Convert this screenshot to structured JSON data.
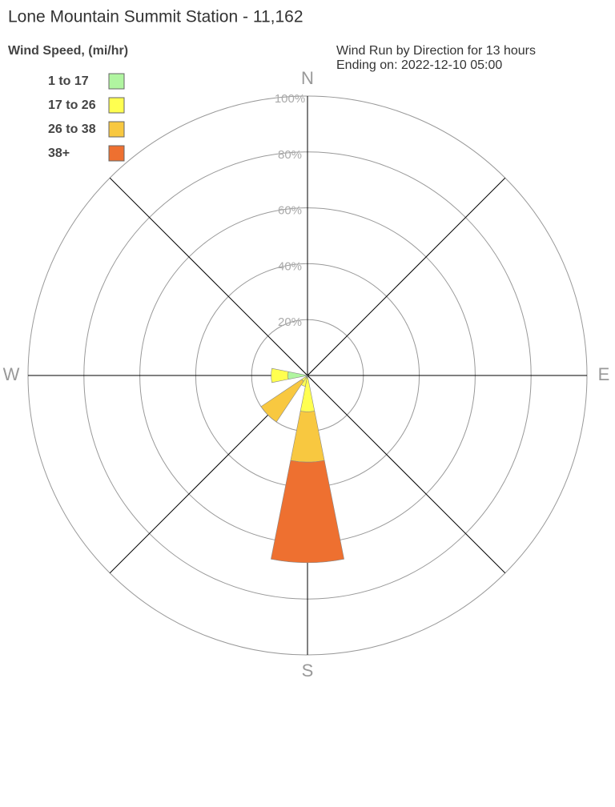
{
  "chart_data": {
    "type": "windrose",
    "title": "Lone Mountain Summit Station - 11,162",
    "legend_title": "Wind Speed, (mi/hr)",
    "subtitle": [
      "Wind Run by Direction for 13 hours",
      "Ending on: 2022-12-10 05:00"
    ],
    "compass": [
      "N",
      "E",
      "S",
      "W"
    ],
    "x": [
      0,
      22.5,
      45,
      67.5,
      90,
      112.5,
      135,
      157.5,
      180,
      202.5,
      225,
      247.5,
      270,
      292.5,
      315,
      337.5
    ],
    "series": [
      {
        "name": "1 to 17",
        "color": "#b0f5a0",
        "values": [
          0,
          0,
          0,
          0,
          0,
          0,
          0,
          0,
          0.5,
          1,
          0.5,
          0,
          7,
          0,
          0,
          0
        ]
      },
      {
        "name": "17 to 26",
        "color": "#ffff50",
        "values": [
          0,
          0,
          0,
          0,
          0,
          0,
          0,
          0,
          12.5,
          3,
          2,
          0,
          6,
          0,
          0,
          0
        ]
      },
      {
        "name": "26 to 38",
        "color": "#f8c840",
        "values": [
          0,
          0,
          0,
          0,
          0,
          0,
          0,
          0,
          18,
          0,
          17.5,
          0,
          0,
          0,
          0,
          0
        ]
      },
      {
        "name": "38+",
        "color": "#ee7030",
        "values": [
          0,
          0,
          0,
          0,
          0,
          0,
          0,
          0,
          36,
          0,
          0,
          0,
          0,
          0,
          0,
          0
        ]
      }
    ],
    "ylim": [
      0,
      100
    ],
    "yticks": [
      {
        "value": 20,
        "label": "20%"
      },
      {
        "value": 40,
        "label": "40%"
      },
      {
        "value": 60,
        "label": "60%"
      },
      {
        "value": 80,
        "label": "80%"
      },
      {
        "value": 100,
        "label": "100%"
      }
    ]
  }
}
